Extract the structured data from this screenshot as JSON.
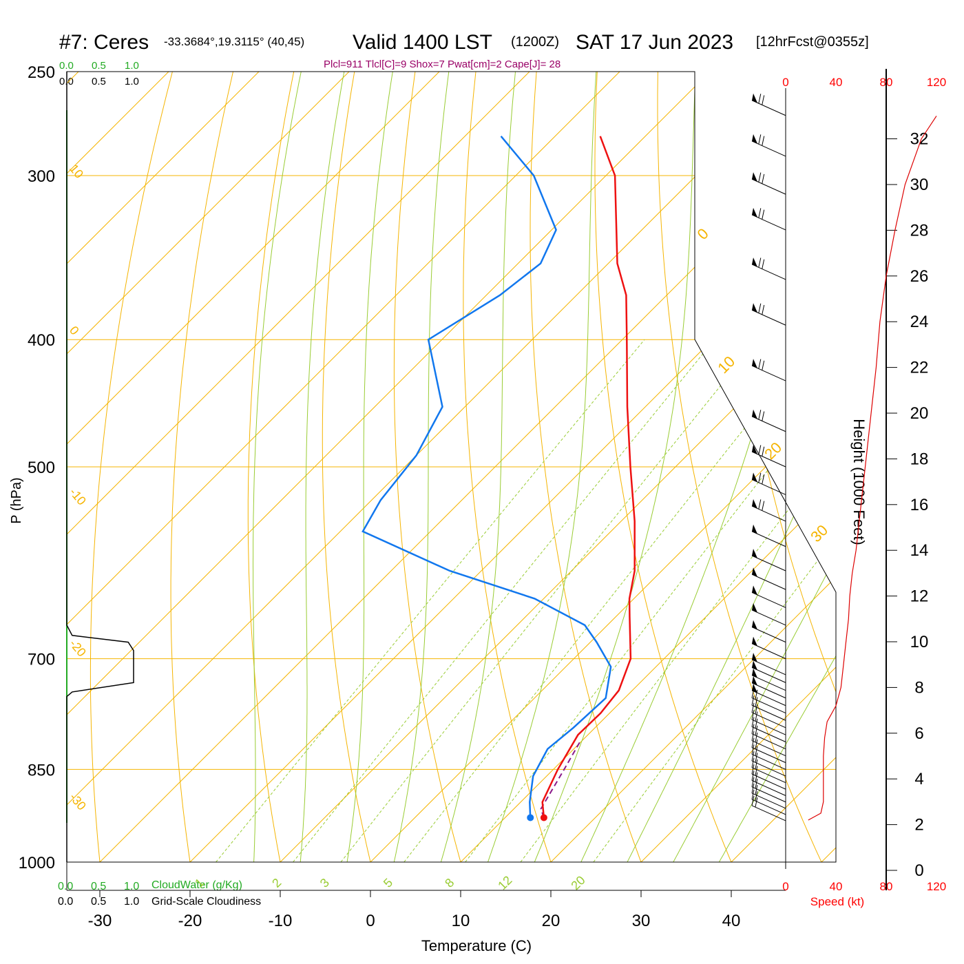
{
  "header": {
    "station": "#7: Ceres",
    "coords": "-33.3684°,19.3115° (40,45)",
    "valid": "Valid 1400 LST",
    "utc": "(1200Z)",
    "date": "SAT 17 Jun 2023",
    "forecast": "[12hrFcst@0355z]",
    "indices": "Plcl=911 Tlcl[C]=9 Shox=7 Pwat[cm]=2 Cape[J]= 28"
  },
  "chart_data": {
    "type": "line",
    "xlabel": "Temperature (C)",
    "ylabel": "P (hPa)",
    "xticks": [
      "-30",
      "-20",
      "-10",
      "0",
      "10",
      "20",
      "30",
      "40"
    ],
    "pressure_levels": [
      "250",
      "300",
      "400",
      "500",
      "700",
      "850",
      "1000"
    ],
    "pressure_values": [
      250,
      300,
      400,
      500,
      700,
      850,
      1000
    ],
    "dry_adiabat_labels": [
      "10",
      "0",
      "-10",
      "-20",
      "-30"
    ],
    "isotherm_labels": [
      "0",
      "10",
      "20",
      "30"
    ],
    "mixing_ratio_labels": [
      "1",
      "2",
      "3",
      "5",
      "8",
      "12",
      "20"
    ],
    "mixing_ratio_values": [
      1,
      2,
      3,
      5,
      8,
      12,
      20
    ],
    "temperature_profile": [
      {
        "p": 925,
        "t": 14.3
      },
      {
        "p": 900,
        "t": 12.4
      },
      {
        "p": 850,
        "t": 10.5
      },
      {
        "p": 800,
        "t": 8.9
      },
      {
        "p": 770,
        "t": 9.0
      },
      {
        "p": 740,
        "t": 8.5
      },
      {
        "p": 700,
        "t": 6.3
      },
      {
        "p": 650,
        "t": 1.5
      },
      {
        "p": 630,
        "t": -0.5
      },
      {
        "p": 600,
        "t": -3.0
      },
      {
        "p": 550,
        "t": -8.5
      },
      {
        "p": 500,
        "t": -15.0
      },
      {
        "p": 450,
        "t": -22.0
      },
      {
        "p": 400,
        "t": -29.5
      },
      {
        "p": 370,
        "t": -34.5
      },
      {
        "p": 350,
        "t": -39.0
      },
      {
        "p": 300,
        "t": -49.0
      },
      {
        "p": 280,
        "t": -55.0
      }
    ],
    "dewpoint_profile": [
      {
        "p": 925,
        "t": 12.8
      },
      {
        "p": 900,
        "t": 11.0
      },
      {
        "p": 860,
        "t": 8.5
      },
      {
        "p": 820,
        "t": 7.1
      },
      {
        "p": 790,
        "t": 7.6
      },
      {
        "p": 750,
        "t": 7.9
      },
      {
        "p": 710,
        "t": 5.0
      },
      {
        "p": 680,
        "t": 0.7
      },
      {
        "p": 660,
        "t": -2.5
      },
      {
        "p": 630,
        "t": -11.0
      },
      {
        "p": 600,
        "t": -23.5
      },
      {
        "p": 560,
        "t": -37.5
      },
      {
        "p": 530,
        "t": -39.0
      },
      {
        "p": 490,
        "t": -40.0
      },
      {
        "p": 450,
        "t": -42.5
      },
      {
        "p": 400,
        "t": -51.5
      },
      {
        "p": 370,
        "t": -48.5
      },
      {
        "p": 350,
        "t": -47.5
      },
      {
        "p": 330,
        "t": -49.5
      },
      {
        "p": 300,
        "t": -58.0
      },
      {
        "p": 280,
        "t": -66.0
      }
    ],
    "parcel_profile": [
      {
        "p": 925,
        "t": 14.3
      },
      {
        "p": 911,
        "t": 13.0
      },
      {
        "p": 850,
        "t": 11.2
      },
      {
        "p": 810,
        "t": 9.9
      }
    ],
    "cloud_axis": {
      "top_labels": [
        "0.0",
        "0.5",
        "1.0"
      ],
      "bottom_labels": [
        "0.0",
        "0.5",
        "1.0"
      ],
      "cloudwater_label": "CloudWater (g/Kg)",
      "cloudiness_label": "Grid-Scale Cloudiness"
    },
    "cloudiness_profile": [
      {
        "p": 1000,
        "v": 0.0
      },
      {
        "p": 748,
        "v": 0.0
      },
      {
        "p": 742,
        "v": 0.08
      },
      {
        "p": 730,
        "v": 1.0
      },
      {
        "p": 690,
        "v": 1.0
      },
      {
        "p": 680,
        "v": 0.92
      },
      {
        "p": 672,
        "v": 0.08
      },
      {
        "p": 660,
        "v": 0.0
      },
      {
        "p": 250,
        "v": 0.0
      }
    ],
    "speed_axis": {
      "ticks": [
        "0",
        "40",
        "80",
        "120"
      ],
      "label": "Speed (kt)"
    },
    "height_axis": {
      "label": "Height (1000 Feet)",
      "ticks": [
        "0",
        "2",
        "4",
        "6",
        "8",
        "10",
        "12",
        "14",
        "16",
        "18",
        "20",
        "22",
        "24",
        "26",
        "28",
        "30",
        "32"
      ]
    },
    "wind_speed_profile": [
      {
        "h": 2.2,
        "s": 18
      },
      {
        "h": 2.5,
        "s": 28
      },
      {
        "h": 3.0,
        "s": 30
      },
      {
        "h": 4.0,
        "s": 30
      },
      {
        "h": 5.0,
        "s": 30
      },
      {
        "h": 5.8,
        "s": 31
      },
      {
        "h": 6.5,
        "s": 33
      },
      {
        "h": 7.2,
        "s": 40
      },
      {
        "h": 8.0,
        "s": 44
      },
      {
        "h": 9.0,
        "s": 46
      },
      {
        "h": 10.0,
        "s": 48
      },
      {
        "h": 11.0,
        "s": 50
      },
      {
        "h": 12.0,
        "s": 51
      },
      {
        "h": 13.0,
        "s": 53
      },
      {
        "h": 14.0,
        "s": 56
      },
      {
        "h": 16.0,
        "s": 60
      },
      {
        "h": 18.0,
        "s": 64
      },
      {
        "h": 20.0,
        "s": 68
      },
      {
        "h": 22.0,
        "s": 72
      },
      {
        "h": 24.0,
        "s": 75
      },
      {
        "h": 26.0,
        "s": 80
      },
      {
        "h": 28.0,
        "s": 87
      },
      {
        "h": 30.0,
        "s": 95
      },
      {
        "h": 32.0,
        "s": 108
      },
      {
        "h": 33.0,
        "s": 120
      }
    ]
  }
}
